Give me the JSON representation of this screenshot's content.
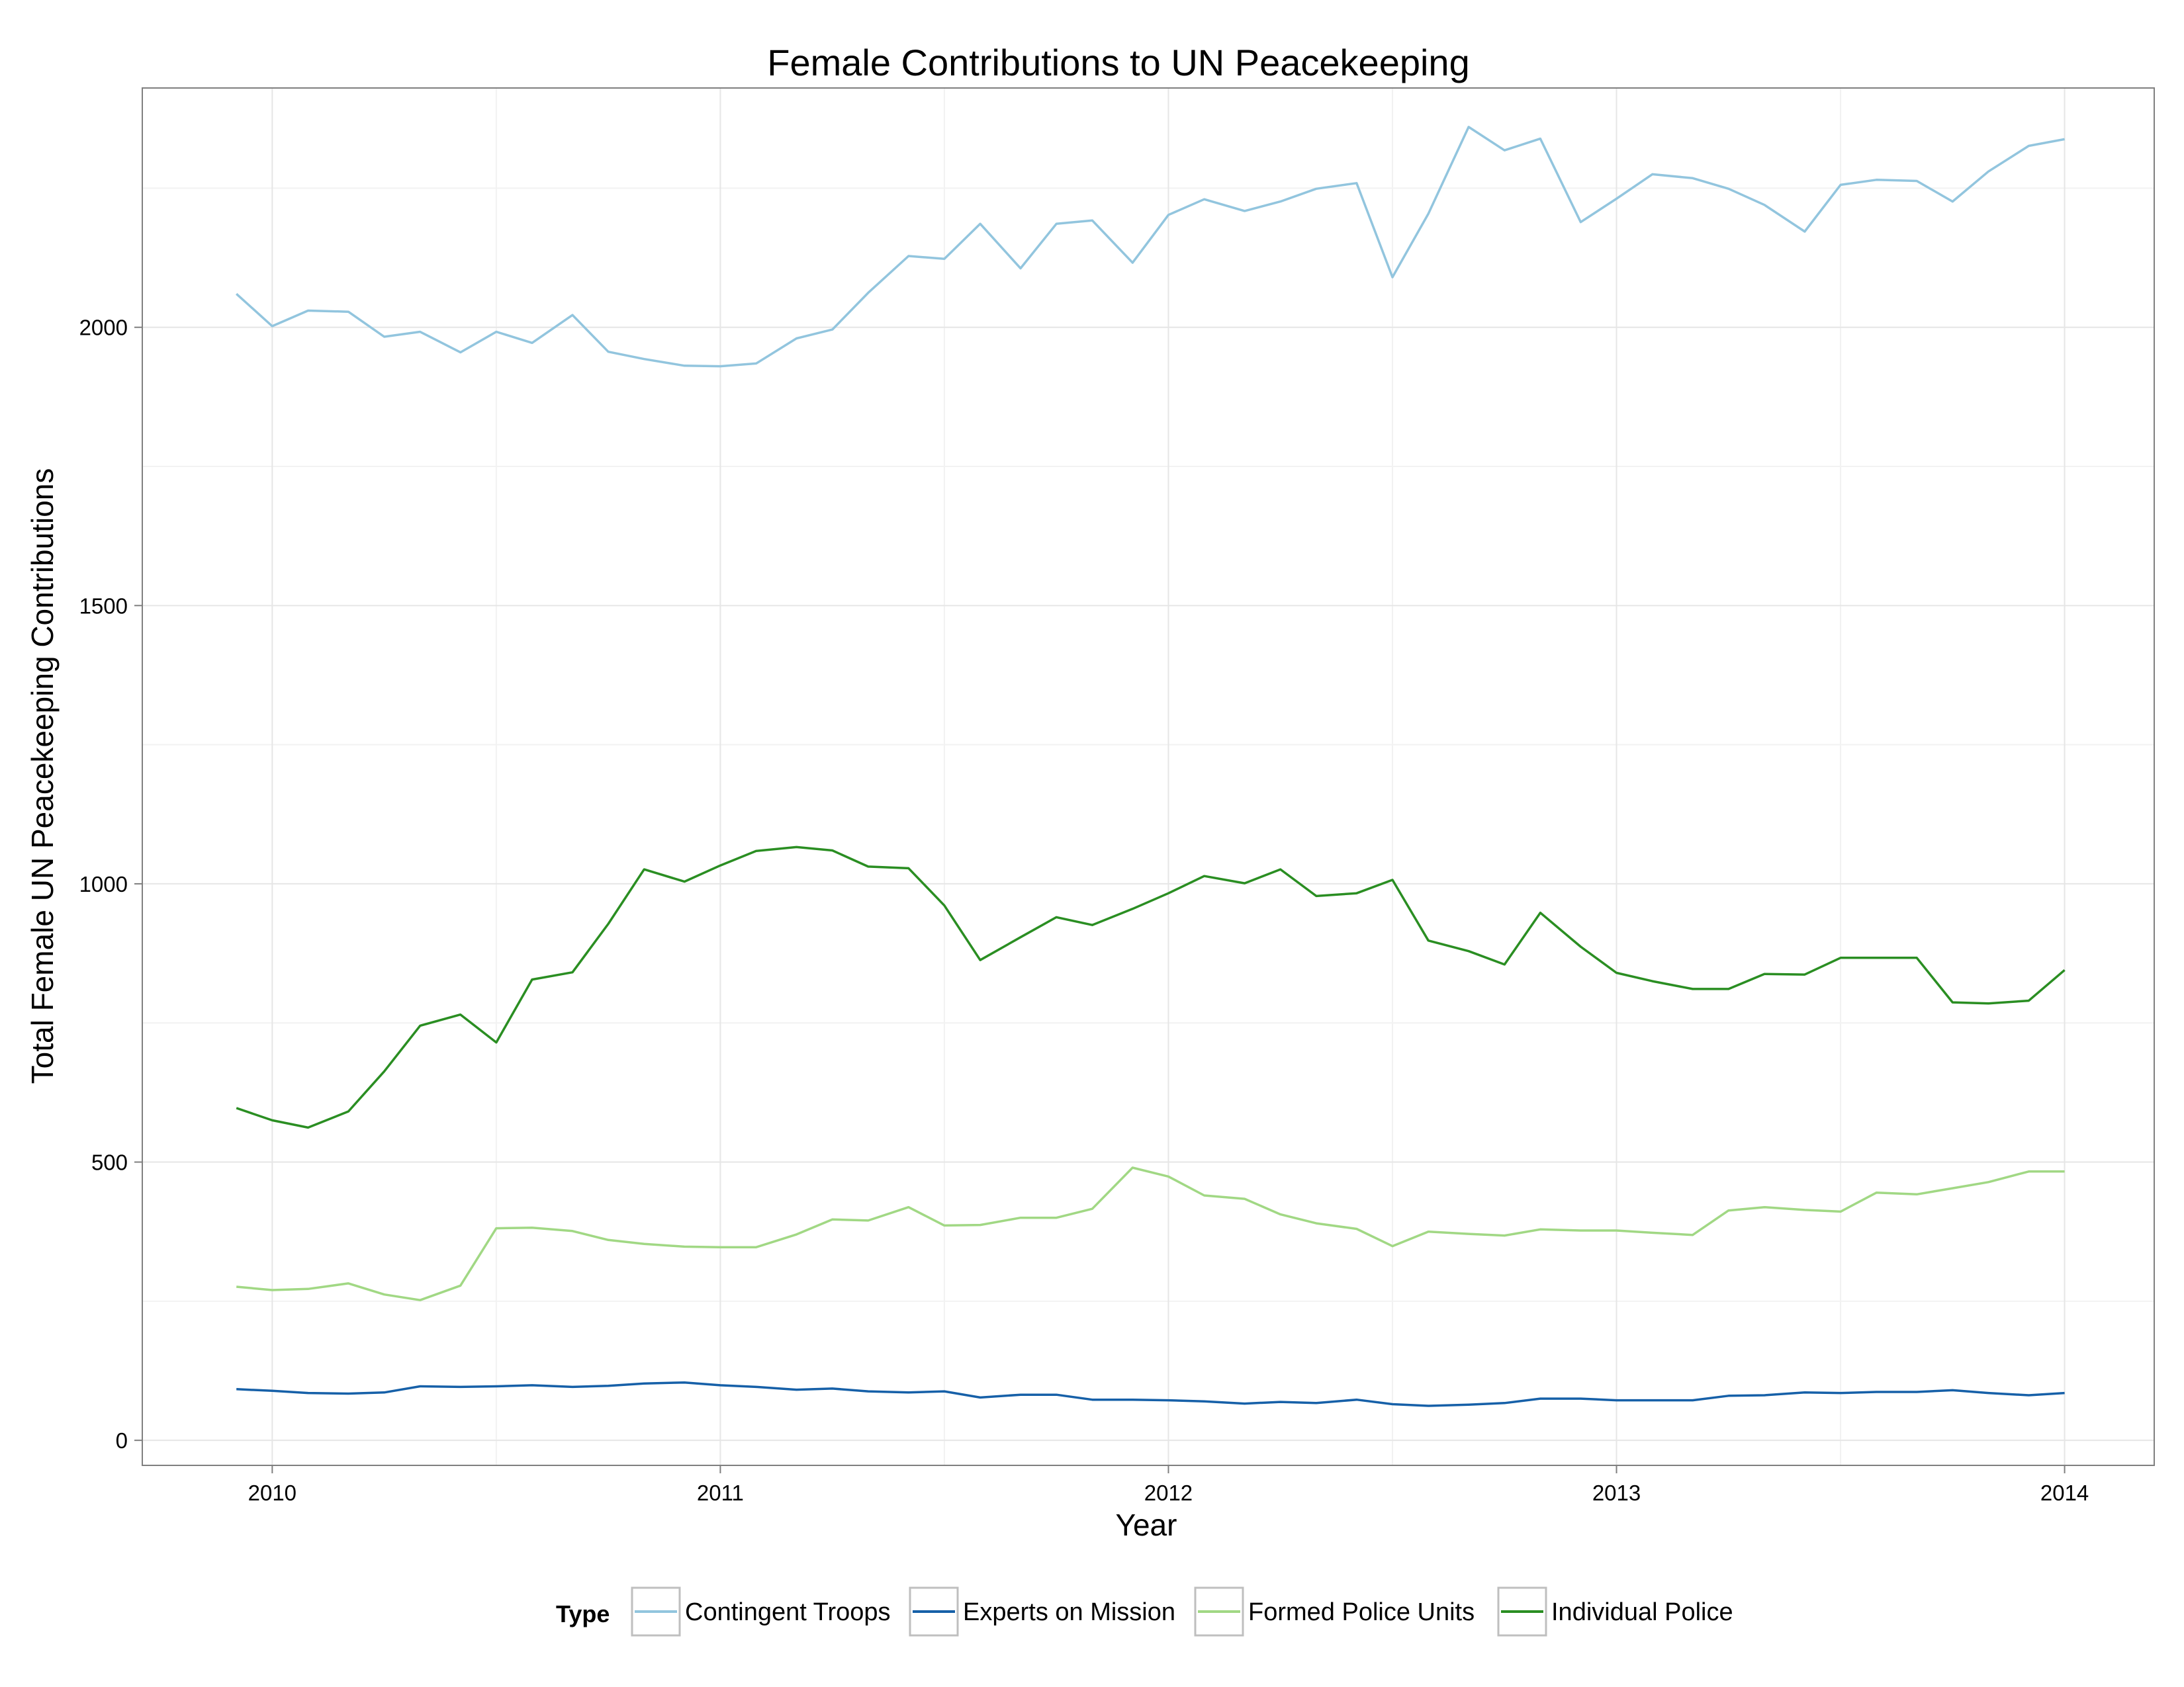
{
  "chart_data": {
    "type": "line",
    "title": "Female Contributions to UN Peacekeeping",
    "xlabel": "Year",
    "ylabel": "Total Female UN Peacekeeping Contributions",
    "x_ticks": [
      "2010",
      "2011",
      "2012",
      "2013",
      "2014"
    ],
    "y_ticks": [
      "0",
      "500",
      "1000",
      "1500",
      "2000"
    ],
    "xlim": [
      2009.71,
      2014.2
    ],
    "ylim": [
      -45,
      2430
    ],
    "grid": true,
    "legend_title": "Type",
    "legend_position": "bottom",
    "x": [
      2009.92,
      2010.0,
      2010.08,
      2010.17,
      2010.25,
      2010.33,
      2010.42,
      2010.5,
      2010.58,
      2010.67,
      2010.75,
      2010.83,
      2010.92,
      2011.0,
      2011.08,
      2011.17,
      2011.25,
      2011.33,
      2011.42,
      2011.5,
      2011.58,
      2011.67,
      2011.75,
      2011.83,
      2011.92,
      2012.0,
      2012.08,
      2012.17,
      2012.25,
      2012.33,
      2012.42,
      2012.5,
      2012.58,
      2012.67,
      2012.75,
      2012.83,
      2012.92,
      2013.0,
      2013.08,
      2013.17,
      2013.25,
      2013.33,
      2013.42,
      2013.5,
      2013.58,
      2013.67,
      2013.75,
      2013.83,
      2013.92,
      2014.0
    ],
    "series": [
      {
        "name": "Contingent Troops",
        "color": "#92C5DE",
        "values": [
          2060,
          2002,
          2030,
          2028,
          1983,
          1992,
          1955,
          1992,
          1972,
          2022,
          1956,
          1943,
          1931,
          1930,
          1935,
          1980,
          1996,
          2062,
          2128,
          2123,
          2186,
          2106,
          2186,
          2192,
          2116,
          2202,
          2230,
          2209,
          2226,
          2249,
          2259,
          2090,
          2204,
          2360,
          2318,
          2339,
          2189,
          2231,
          2275,
          2268,
          2249,
          2220,
          2172,
          2256,
          2265,
          2263,
          2226,
          2280,
          2326,
          2338
        ]
      },
      {
        "name": "Experts on Mission",
        "color": "#1660A8",
        "values": [
          92,
          89,
          85,
          84,
          86,
          97,
          96,
          97,
          99,
          96,
          98,
          102,
          104,
          99,
          96,
          91,
          93,
          88,
          86,
          88,
          77,
          82,
          82,
          73,
          73,
          72,
          70,
          66,
          69,
          67,
          73,
          65,
          62,
          64,
          67,
          75,
          75,
          72,
          72,
          72,
          80,
          81,
          86,
          85,
          87,
          87,
          90,
          85,
          81,
          85
        ]
      },
      {
        "name": "Formed Police Units",
        "color": "#A1D884",
        "values": [
          276,
          270,
          272,
          282,
          262,
          252,
          278,
          381,
          382,
          376,
          360,
          353,
          348,
          347,
          347,
          370,
          397,
          395,
          419,
          386,
          387,
          400,
          400,
          416,
          490,
          474,
          440,
          434,
          406,
          390,
          380,
          349,
          375,
          371,
          368,
          379,
          377,
          377,
          373,
          369,
          413,
          419,
          414,
          411,
          445,
          442,
          453,
          464,
          483,
          483
        ]
      },
      {
        "name": "Individual Police",
        "color": "#2A8E22",
        "values": [
          597,
          575,
          562,
          591,
          663,
          745,
          765,
          715,
          828,
          841,
          928,
          1026,
          1004,
          1033,
          1059,
          1066,
          1060,
          1031,
          1028,
          961,
          863,
          904,
          940,
          926,
          955,
          983,
          1014,
          1001,
          1026,
          978,
          983,
          1007,
          898,
          879,
          855,
          948,
          887,
          840,
          825,
          811,
          811,
          838,
          837,
          867,
          867,
          867,
          787,
          785,
          790,
          845
        ]
      }
    ]
  }
}
